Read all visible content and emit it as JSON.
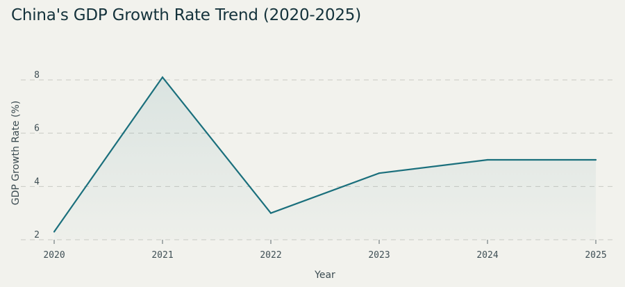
{
  "chart_data": {
    "type": "area",
    "title": "China's GDP Growth Rate Trend (2020-2025)",
    "xlabel": "Year",
    "ylabel": "GDP Growth Rate (%)",
    "x": [
      "2020",
      "2021",
      "2022",
      "2023",
      "2024",
      "2025"
    ],
    "series": [
      {
        "values": [
          2.3,
          8.1,
          3.0,
          4.5,
          5.0,
          5.0
        ]
      }
    ],
    "yticks": [
      2,
      4,
      6,
      8
    ],
    "ylim": [
      2,
      8
    ],
    "grid": "horizontal-dashed",
    "legend": "none",
    "colors": {
      "line": "#1a6f7c",
      "fill": "#1a6f7c",
      "grid": "#c9cac4",
      "background": "#f2f2ed"
    }
  }
}
